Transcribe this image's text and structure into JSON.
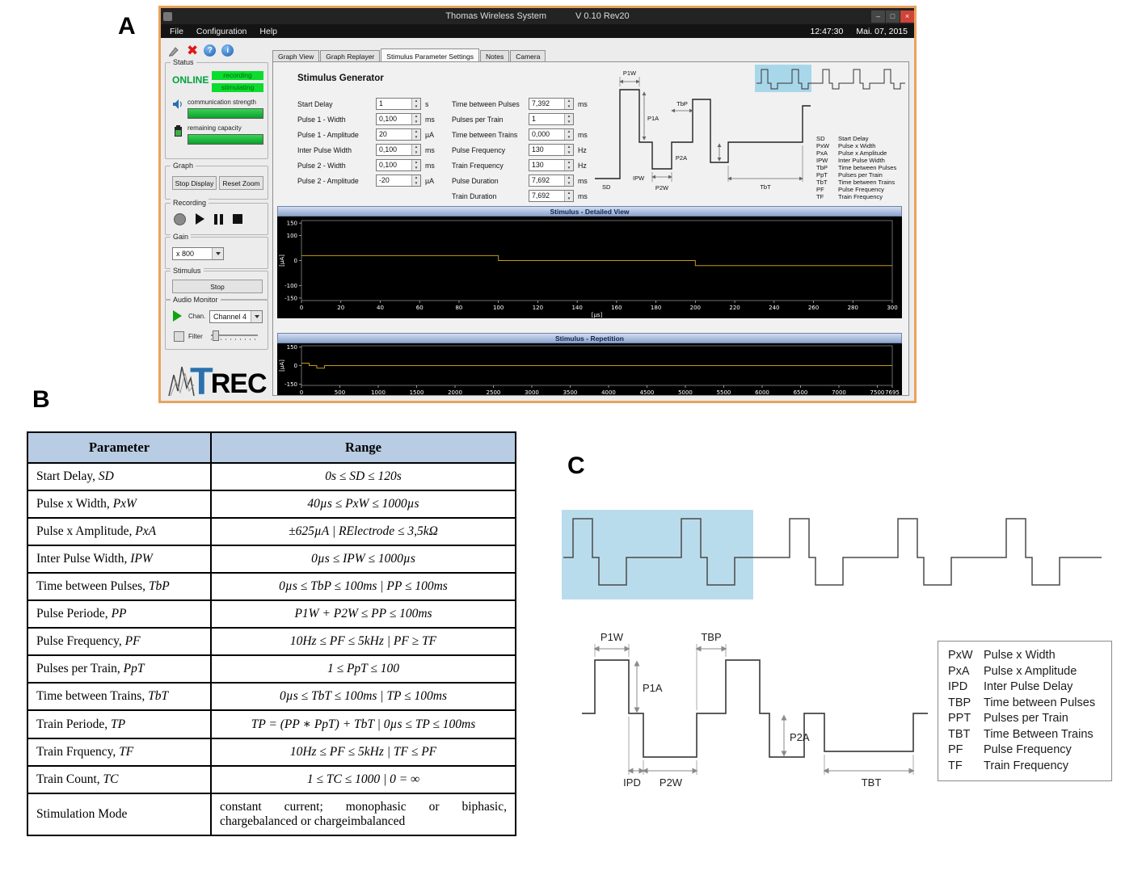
{
  "figure": {
    "label_a": "A",
    "label_b": "B",
    "label_c": "C"
  },
  "window": {
    "title": "Thomas Wireless System",
    "version": "V 0.10 Rev20",
    "controls": {
      "min": "–",
      "max": "□",
      "close": "×"
    },
    "menus": [
      "File",
      "Configuration",
      "Help"
    ],
    "clock": "12:47:30",
    "date": "Mai. 07, 2015",
    "toolbar": {
      "help_glyph": "?",
      "info_glyph": "i"
    },
    "sidebar": {
      "status": {
        "group_label": "Status",
        "online": "ONLINE",
        "badges": [
          "recording",
          "stimulating"
        ],
        "comm_label": "communication strength",
        "capacity_label": "remaining capacity"
      },
      "graph": {
        "group_label": "Graph",
        "stop_display": "Stop Display",
        "reset_zoom": "Reset Zoom"
      },
      "recording": {
        "group_label": "Recording"
      },
      "gain": {
        "group_label": "Gain",
        "value": "x 800"
      },
      "stimulus": {
        "group_label": "Stimulus",
        "stop": "Stop"
      },
      "audio": {
        "group_label": "Audio Monitor",
        "chan_label": "Chan.",
        "channel": "Channel 4",
        "filter_label": "Filter"
      },
      "logo": {
        "t": "T",
        "rec": "REC"
      }
    },
    "tabs": [
      {
        "label": "Graph View",
        "active": false
      },
      {
        "label": "Graph Replayer",
        "active": false
      },
      {
        "label": "Stimulus Parameter Settings",
        "active": true
      },
      {
        "label": "Notes",
        "active": false
      },
      {
        "label": "Camera",
        "active": false
      }
    ],
    "stimulus_generator": {
      "heading": "Stimulus Generator",
      "left_fields": [
        {
          "label": "Start Delay",
          "value": "1",
          "unit": "s"
        },
        {
          "label": "Pulse 1 - Width",
          "value": "0,100",
          "unit": "ms"
        },
        {
          "label": "Pulse 1 - Amplitude",
          "value": "20",
          "unit": "µA"
        },
        {
          "label": "Inter Pulse Width",
          "value": "0,100",
          "unit": "ms"
        },
        {
          "label": "Pulse 2 - Width",
          "value": "0,100",
          "unit": "ms"
        },
        {
          "label": "Pulse 2 - Amplitude",
          "value": "-20",
          "unit": "µA"
        }
      ],
      "right_fields": [
        {
          "label": "Time between Pulses",
          "value": "7,392",
          "unit": "ms"
        },
        {
          "label": "Pulses per Train",
          "value": "1",
          "unit": ""
        },
        {
          "label": "Time between Trains",
          "value": "0,000",
          "unit": "ms"
        },
        {
          "label": "Pulse Frequency",
          "value": "130",
          "unit": "Hz"
        },
        {
          "label": "Train Frequency",
          "value": "130",
          "unit": "Hz"
        },
        {
          "label": "Pulse Duration",
          "value": "7,692",
          "unit": "ms"
        },
        {
          "label": "Train Duration",
          "value": "7,692",
          "unit": "ms"
        }
      ],
      "diagram_labels": {
        "p1w": "P1W",
        "tbp": "TbP",
        "p1a": "P1A",
        "p2a": "P2A",
        "sd": "SD",
        "ipw": "IPW",
        "p2w": "P2W",
        "tbt": "TbT"
      },
      "legend": [
        {
          "abbr": "SD",
          "desc": "Start Delay"
        },
        {
          "abbr": "PxW",
          "desc": "Pulse x Width"
        },
        {
          "abbr": "PxA",
          "desc": "Pulse x Amplitude"
        },
        {
          "abbr": "IPW",
          "desc": "Inter Pulse Width"
        },
        {
          "abbr": "TbP",
          "desc": "Time between Pulses"
        },
        {
          "abbr": "PpT",
          "desc": "Pulses per Train"
        },
        {
          "abbr": "TbT",
          "desc": "Time between Trains"
        },
        {
          "abbr": "PF",
          "desc": "Pulse Frequency"
        },
        {
          "abbr": "TF",
          "desc": "Train Frequency"
        }
      ]
    }
  },
  "chart_data": [
    {
      "type": "line",
      "title": "Stimulus - Detailed View",
      "xlabel": "[µs]",
      "ylabel": "[µA]",
      "xlim": [
        0,
        300
      ],
      "ylim": [
        -160,
        160
      ],
      "x_ticks": [
        0,
        20,
        40,
        60,
        80,
        100,
        120,
        140,
        160,
        180,
        200,
        220,
        240,
        260,
        280,
        300
      ],
      "y_ticks": [
        150,
        100,
        0,
        -100,
        -150
      ],
      "grid": false,
      "legend_position": "none",
      "series": [
        {
          "name": "stimulus",
          "color": "#c49a17",
          "x": [
            0,
            100,
            100,
            200,
            200,
            300
          ],
          "y": [
            20,
            20,
            0,
            0,
            -20,
            -20
          ]
        }
      ]
    },
    {
      "type": "line",
      "title": "Stimulus - Repetition",
      "xlabel": "",
      "ylabel": "[µA]",
      "xlim": [
        0,
        7695
      ],
      "ylim": [
        -160,
        160
      ],
      "x_ticks": [
        0,
        500,
        1000,
        1500,
        2000,
        2500,
        3000,
        3500,
        4000,
        4500,
        5000,
        5500,
        6000,
        6500,
        7000,
        7500,
        7695
      ],
      "y_ticks": [
        150,
        0,
        -150
      ],
      "grid": false,
      "legend_position": "none",
      "series": [
        {
          "name": "stimulus",
          "color": "#c49a17",
          "x": [
            0,
            100,
            100,
            200,
            200,
            300,
            300,
            7695
          ],
          "y": [
            20,
            20,
            0,
            0,
            -20,
            -20,
            0,
            0
          ]
        }
      ]
    }
  ],
  "table_b": {
    "headers": [
      "Parameter",
      "Range"
    ],
    "rows": [
      {
        "param": "Start Delay",
        "abbr": "SD",
        "range": "0s ≤ SD ≤ 120s"
      },
      {
        "param": "Pulse x Width",
        "abbr": "PxW",
        "range": "40µs ≤ PxW ≤ 1000µs"
      },
      {
        "param": "Pulse x Amplitude",
        "abbr": "PxA",
        "range": "±625µA | RElectrode ≤ 3,5kΩ"
      },
      {
        "param": "Inter Pulse Width",
        "abbr": "IPW",
        "range": "0µs ≤ IPW ≤ 1000µs"
      },
      {
        "param": "Time between Pulses",
        "abbr": "TbP",
        "range": "0µs ≤ TbP ≤ 100ms | PP ≤ 100ms"
      },
      {
        "param": "Pulse Periode",
        "abbr": "PP",
        "range": "P1W + P2W ≤ PP ≤ 100ms"
      },
      {
        "param": "Pulse Frequency",
        "abbr": "PF",
        "range": "10Hz ≤ PF ≤ 5kHz | PF ≥ TF"
      },
      {
        "param": "Pulses per Train",
        "abbr": "PpT",
        "range": "1 ≤ PpT ≤ 100"
      },
      {
        "param": "Time between Trains",
        "abbr": "TbT",
        "range": "0µs ≤ TbT ≤ 100ms | TP ≤ 100ms"
      },
      {
        "param": "Train Periode",
        "abbr": "TP",
        "range": "TP = (PP ∗ PpT) + TbT | 0µs ≤ TP ≤ 100ms"
      },
      {
        "param": "Train Frquency",
        "abbr": "TF",
        "range": "10Hz ≤ PF ≤ 5kHz | TF ≤ PF"
      },
      {
        "param": "Train Count",
        "abbr": "TC",
        "range": "1 ≤ TC ≤ 1000 | 0 = ∞"
      },
      {
        "param": "Stimulation Mode",
        "abbr": "",
        "range": "constant current; monophasic or biphasic, chargebalanced or chargeimbalanced"
      }
    ]
  },
  "panel_c": {
    "diagram_labels": {
      "p1w": "P1W",
      "tbp": "TBP",
      "p1a": "P1A",
      "p2a": "P2A",
      "ipd": "IPD",
      "p2w": "P2W",
      "tbt": "TBT"
    },
    "legend": [
      {
        "abbr": "PxW",
        "desc": "Pulse x Width"
      },
      {
        "abbr": "PxA",
        "desc": "Pulse x Amplitude"
      },
      {
        "abbr": "IPD",
        "desc": "Inter Pulse Delay"
      },
      {
        "abbr": "TBP",
        "desc": "Time between Pulses"
      },
      {
        "abbr": "PPT",
        "desc": "Pulses per Train"
      },
      {
        "abbr": "TBT",
        "desc": "Time Between Trains"
      },
      {
        "abbr": "PF",
        "desc": "Pulse Frequency"
      },
      {
        "abbr": "TF",
        "desc": "Train Frequency"
      }
    ]
  }
}
